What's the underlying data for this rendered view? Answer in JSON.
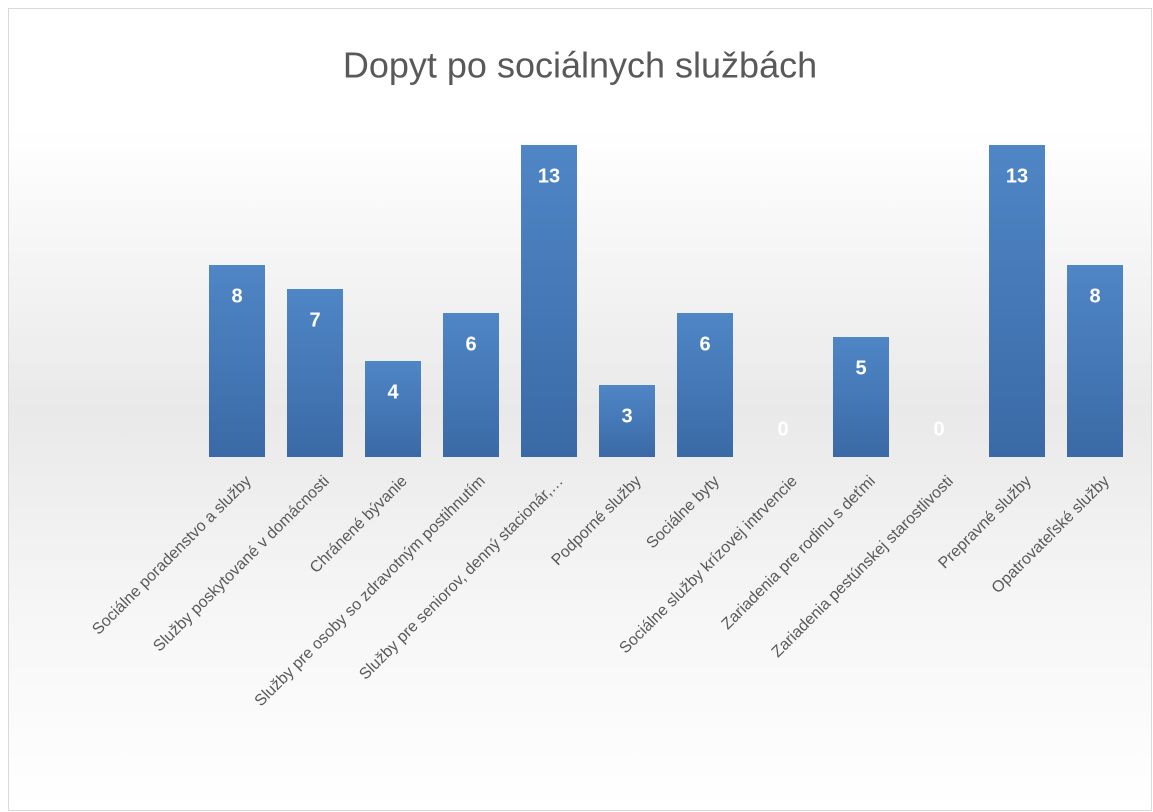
{
  "chart_data": {
    "type": "bar",
    "title": "Dopyt po sociálnych službách",
    "categories": [
      "Sociálne poradenstvo a služby",
      "Služby poskytované v domácnosti",
      "Chránené bývanie",
      "Služby pre osoby so zdravotným postihnutím",
      "Služby pre seniorov, denný stacionár,…",
      "Podporné služby",
      "Sociálne byty",
      "Sociálne služby krízovej intrvencie",
      "Zariadenia pre rodinu s deťmi",
      "Zariadenia pestúnskej starostlivosti",
      "Prepravné služby",
      "Opatrovateľské služby"
    ],
    "values": [
      8,
      7,
      4,
      6,
      13,
      3,
      6,
      0,
      5,
      0,
      13,
      8
    ],
    "color": "#4a7ebb",
    "ylim": [
      0,
      14
    ]
  }
}
